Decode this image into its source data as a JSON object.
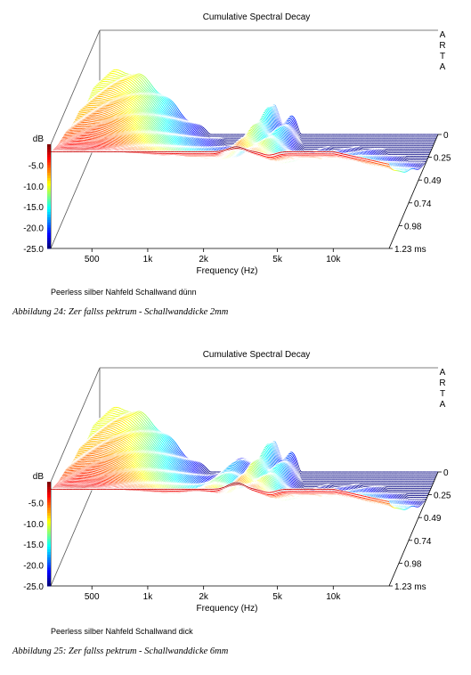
{
  "chart_data": [
    {
      "type": "cumulative-spectral-decay",
      "title": "Cumulative Spectral Decay",
      "brand": "ARTA",
      "xlabel": "Frequency (Hz)",
      "ylabel": "dB",
      "x_scale": "log",
      "xlim": [
        300,
        20000
      ],
      "x_ticks": [
        "500",
        "1k",
        "2k",
        "5k",
        "10k"
      ],
      "x_tick_values": [
        500,
        1000,
        2000,
        5000,
        10000
      ],
      "ylim": [
        -25,
        0
      ],
      "y_ticks": [
        "-5.0",
        "-10.0",
        "-15.0",
        "-20.0",
        "-25.0"
      ],
      "z_label_unit": "ms",
      "z_ticks": [
        "0",
        "0.25",
        "0.49",
        "0.74",
        "0.98",
        "1.23 ms"
      ],
      "z_range_ms": [
        0,
        1.23
      ],
      "slices": 64,
      "subtitle": "Peerless silber Nahfeld Schallwand dünn",
      "caption": "Abbildung 24: Zer fallss pektrum - Schallwanddicke 2mm",
      "response_db": {
        "freq_hz": [
          300,
          500,
          1000,
          2000,
          3000,
          5000,
          10000,
          20000
        ],
        "t0": [
          -0.5,
          -1.5,
          -1.5,
          -1.8,
          -0.5,
          -2.0,
          -2.5,
          -5.0
        ]
      }
    },
    {
      "type": "cumulative-spectral-decay",
      "title": "Cumulative Spectral Decay",
      "brand": "ARTA",
      "xlabel": "Frequency (Hz)",
      "ylabel": "dB",
      "x_scale": "log",
      "xlim": [
        300,
        20000
      ],
      "x_ticks": [
        "500",
        "1k",
        "2k",
        "5k",
        "10k"
      ],
      "x_tick_values": [
        500,
        1000,
        2000,
        5000,
        10000
      ],
      "ylim": [
        -25,
        0
      ],
      "y_ticks": [
        "-5.0",
        "-10.0",
        "-15.0",
        "-20.0",
        "-25.0"
      ],
      "z_label_unit": "ms",
      "z_ticks": [
        "0",
        "0.25",
        "0.49",
        "0.74",
        "0.98",
        "1.23 ms"
      ],
      "z_range_ms": [
        0,
        1.23
      ],
      "slices": 64,
      "subtitle": "Peerless silber Nahfeld Schallwand dick",
      "caption": "Abbildung 25: Zer fallss pektrum - Schallwanddicke 6mm",
      "response_db": {
        "freq_hz": [
          300,
          500,
          1000,
          2000,
          3000,
          5000,
          10000,
          20000
        ],
        "t0": [
          -0.5,
          -1.0,
          -1.2,
          -1.5,
          0.0,
          -1.5,
          -2.5,
          -5.0
        ]
      }
    }
  ]
}
